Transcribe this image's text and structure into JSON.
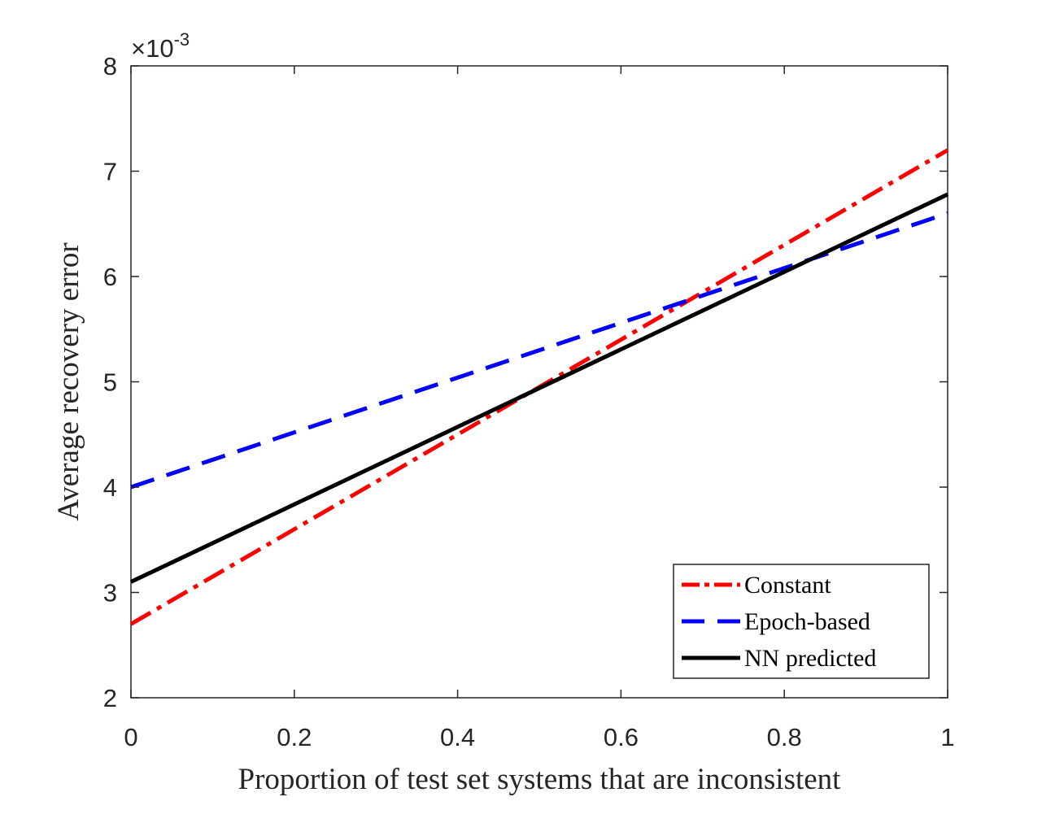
{
  "chart_data": {
    "type": "line",
    "xlabel": "Proportion of test set systems that are inconsistent",
    "ylabel": "Average recovery error",
    "xlim": [
      0,
      1
    ],
    "ylim": [
      2,
      8
    ],
    "xticks": [
      "0",
      "0.2",
      "0.4",
      "0.6",
      "0.8",
      "1"
    ],
    "yticks": [
      "2",
      "3",
      "4",
      "5",
      "6",
      "7",
      "8"
    ],
    "y_exponent": {
      "base": "×10",
      "power": "-3"
    },
    "grid": false,
    "legend_position": "bottom-right",
    "series": [
      {
        "name": "Constant",
        "style": "dash-dot",
        "color": "#ff0000",
        "x": [
          0,
          1
        ],
        "y": [
          2.7,
          7.2
        ]
      },
      {
        "name": "Epoch-based",
        "style": "dashed",
        "color": "#0000ff",
        "x": [
          0,
          1
        ],
        "y": [
          4.0,
          6.6
        ]
      },
      {
        "name": "NN predicted",
        "style": "solid",
        "color": "#000000",
        "x": [
          0,
          1
        ],
        "y": [
          3.1,
          6.78
        ]
      }
    ]
  }
}
